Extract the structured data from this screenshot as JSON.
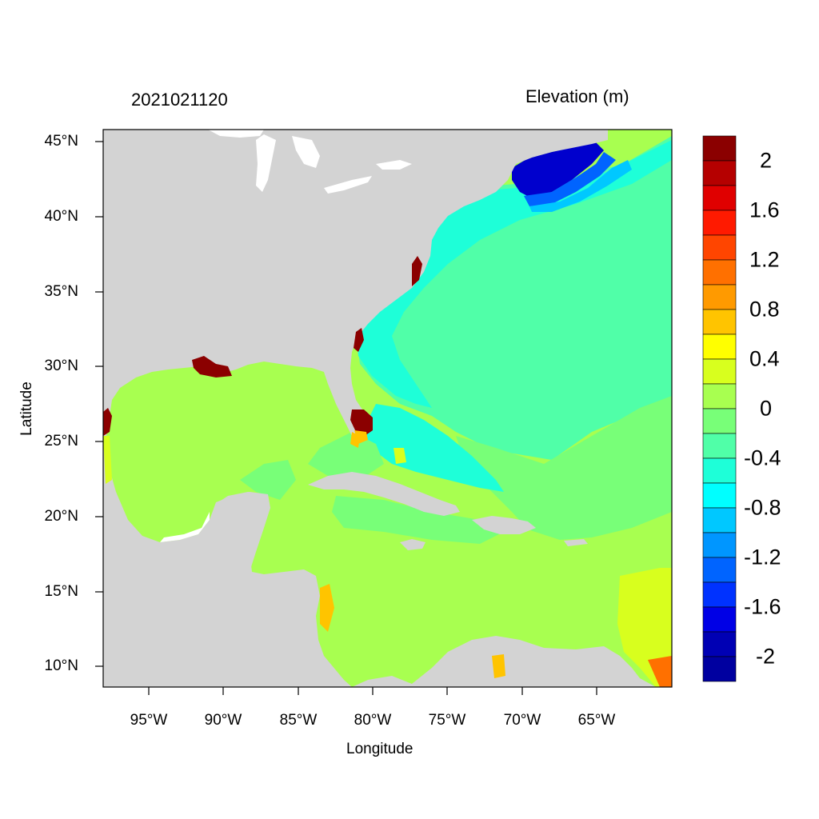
{
  "header": {
    "timestamp": "2021021120",
    "variable": "Elevation (m)"
  },
  "axes": {
    "x_label": "Longitude",
    "y_label": "Latitude",
    "x_ticks": [
      "95°W",
      "90°W",
      "85°W",
      "80°W",
      "75°W",
      "70°W",
      "65°W"
    ],
    "y_ticks": [
      "45°N",
      "40°N",
      "35°N",
      "30°N",
      "25°N",
      "20°N",
      "15°N",
      "10°N"
    ]
  },
  "colorbar": {
    "labels": [
      "2",
      "1.6",
      "1.2",
      "0.8",
      "0.4",
      "0",
      "-0.4",
      "-0.8",
      "-1.2",
      "-1.6",
      "-2"
    ],
    "colors": [
      "#8b0000",
      "#b50000",
      "#e00000",
      "#ff1a00",
      "#ff4500",
      "#ff7000",
      "#ff9a00",
      "#ffc400",
      "#ffff00",
      "#d8ff1e",
      "#a8ff50",
      "#78ff78",
      "#50ffa8",
      "#1effd8",
      "#00ffff",
      "#00c8ff",
      "#0096ff",
      "#0064ff",
      "#0032ff",
      "#0000e6",
      "#0000b4",
      "#0000a0"
    ]
  },
  "map": {
    "land_color": "#d3d3d3",
    "ocean_base_color": "#a8ff50",
    "atlantic_color": "#50ffa8",
    "gulf_stream_color": "#1effd8",
    "gulf_maine_color": "#0000cd",
    "surge_color": "#8b0000"
  }
}
